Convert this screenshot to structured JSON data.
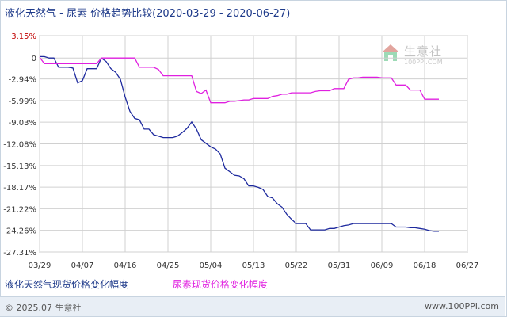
{
  "header": {
    "title": "液化天然气 - 尿素 价格趋势比较",
    "date_range": "(2020-03-29 - 2020-06-27)"
  },
  "watermark": {
    "name": "生意社",
    "url": "100PPI.COM"
  },
  "footer": {
    "copyright": "© 2025.07 生意社",
    "site": "www.100PPI.com"
  },
  "colors": {
    "lng": "#1e2a9e",
    "urea": "#e020e0",
    "grid": "#d0d0d0"
  },
  "chart_data": {
    "type": "line",
    "title": "液化天然气 - 尿素 价格趋势比较",
    "xlabel": "",
    "ylabel": "",
    "grid": true,
    "legend_position": "bottom-left",
    "ylim": [
      -27.31,
      3.15
    ],
    "yticks": [
      "3.15%",
      "0",
      "-2.94%",
      "-5.99%",
      "-9.03%",
      "-12.08%",
      "-15.13%",
      "-18.17%",
      "-21.22%",
      "-24.26%",
      "-27.31%"
    ],
    "ytick_values": [
      3.15,
      0,
      -2.94,
      -5.99,
      -9.03,
      -12.08,
      -15.13,
      -18.17,
      -21.22,
      -24.26,
      -27.31
    ],
    "xticks": [
      "03/29",
      "04/07",
      "04/16",
      "04/25",
      "05/04",
      "05/13",
      "05/22",
      "05/31",
      "06/09",
      "06/18",
      "06/27"
    ],
    "series": [
      {
        "name": "液化天然气现货价格变化幅度",
        "color": "#1e2a9e",
        "points": [
          [
            0,
            0.2
          ],
          [
            1,
            0.2
          ],
          [
            2,
            0.0
          ],
          [
            3,
            0.0
          ],
          [
            4,
            -1.3
          ],
          [
            5,
            -1.3
          ],
          [
            6,
            -1.3
          ],
          [
            7,
            -1.4
          ],
          [
            8,
            -3.5
          ],
          [
            9,
            -3.2
          ],
          [
            10,
            -1.5
          ],
          [
            11,
            -1.5
          ],
          [
            12,
            -1.5
          ],
          [
            13,
            0.0
          ],
          [
            14,
            -0.5
          ],
          [
            15,
            -1.5
          ],
          [
            16,
            -2.0
          ],
          [
            17,
            -3.0
          ],
          [
            18,
            -5.5
          ],
          [
            19,
            -7.5
          ],
          [
            20,
            -8.5
          ],
          [
            21,
            -8.7
          ],
          [
            22,
            -10.0
          ],
          [
            23,
            -10.0
          ],
          [
            24,
            -10.8
          ],
          [
            25,
            -11.0
          ],
          [
            26,
            -11.2
          ],
          [
            27,
            -11.2
          ],
          [
            28,
            -11.2
          ],
          [
            29,
            -11.0
          ],
          [
            30,
            -10.5
          ],
          [
            31,
            -9.9
          ],
          [
            32,
            -9.0
          ],
          [
            33,
            -10.0
          ],
          [
            34,
            -11.5
          ],
          [
            35,
            -12.0
          ],
          [
            36,
            -12.5
          ],
          [
            37,
            -12.8
          ],
          [
            38,
            -13.5
          ],
          [
            39,
            -15.5
          ],
          [
            40,
            -16.0
          ],
          [
            41,
            -16.5
          ],
          [
            42,
            -16.6
          ],
          [
            43,
            -17.0
          ],
          [
            44,
            -18.0
          ],
          [
            45,
            -18.0
          ],
          [
            46,
            -18.2
          ],
          [
            47,
            -18.5
          ],
          [
            48,
            -19.5
          ],
          [
            49,
            -19.7
          ],
          [
            50,
            -20.5
          ],
          [
            51,
            -21.0
          ],
          [
            52,
            -22.0
          ],
          [
            53,
            -22.7
          ],
          [
            54,
            -23.3
          ],
          [
            55,
            -23.3
          ],
          [
            56,
            -23.3
          ],
          [
            57,
            -24.2
          ],
          [
            58,
            -24.2
          ],
          [
            59,
            -24.2
          ],
          [
            60,
            -24.2
          ],
          [
            61,
            -24.0
          ],
          [
            62,
            -24.0
          ],
          [
            63,
            -23.8
          ],
          [
            64,
            -23.6
          ],
          [
            65,
            -23.5
          ],
          [
            66,
            -23.3
          ],
          [
            67,
            -23.3
          ],
          [
            68,
            -23.3
          ],
          [
            69,
            -23.3
          ],
          [
            70,
            -23.3
          ],
          [
            71,
            -23.3
          ],
          [
            72,
            -23.3
          ],
          [
            73,
            -23.3
          ],
          [
            74,
            -23.3
          ],
          [
            75,
            -23.8
          ],
          [
            76,
            -23.8
          ],
          [
            77,
            -23.8
          ],
          [
            78,
            -23.9
          ],
          [
            79,
            -23.9
          ],
          [
            80,
            -24.0
          ],
          [
            81,
            -24.1
          ],
          [
            82,
            -24.3
          ],
          [
            83,
            -24.4
          ],
          [
            84,
            -24.4
          ]
        ]
      },
      {
        "name": "尿素现货价格变化幅度",
        "color": "#e020e0",
        "points": [
          [
            0,
            0.1
          ],
          [
            1,
            -0.8
          ],
          [
            2,
            -0.8
          ],
          [
            3,
            -0.8
          ],
          [
            4,
            -0.8
          ],
          [
            5,
            -0.8
          ],
          [
            6,
            -0.8
          ],
          [
            7,
            -0.8
          ],
          [
            8,
            -0.8
          ],
          [
            9,
            -0.8
          ],
          [
            10,
            -0.8
          ],
          [
            11,
            -0.8
          ],
          [
            12,
            -0.8
          ],
          [
            13,
            0.0
          ],
          [
            14,
            0.0
          ],
          [
            15,
            0.0
          ],
          [
            16,
            0.0
          ],
          [
            17,
            0.0
          ],
          [
            18,
            0.0
          ],
          [
            19,
            0.0
          ],
          [
            20,
            0.0
          ],
          [
            21,
            -1.3
          ],
          [
            22,
            -1.3
          ],
          [
            23,
            -1.3
          ],
          [
            24,
            -1.3
          ],
          [
            25,
            -1.6
          ],
          [
            26,
            -2.5
          ],
          [
            27,
            -2.5
          ],
          [
            28,
            -2.5
          ],
          [
            29,
            -2.5
          ],
          [
            30,
            -2.5
          ],
          [
            31,
            -2.5
          ],
          [
            32,
            -2.5
          ],
          [
            33,
            -4.7
          ],
          [
            34,
            -5.0
          ],
          [
            35,
            -4.5
          ],
          [
            36,
            -6.3
          ],
          [
            37,
            -6.3
          ],
          [
            38,
            -6.3
          ],
          [
            39,
            -6.3
          ],
          [
            40,
            -6.1
          ],
          [
            41,
            -6.1
          ],
          [
            42,
            -6.0
          ],
          [
            43,
            -5.9
          ],
          [
            44,
            -5.9
          ],
          [
            45,
            -5.7
          ],
          [
            46,
            -5.7
          ],
          [
            47,
            -5.7
          ],
          [
            48,
            -5.7
          ],
          [
            49,
            -5.4
          ],
          [
            50,
            -5.3
          ],
          [
            51,
            -5.1
          ],
          [
            52,
            -5.1
          ],
          [
            53,
            -4.9
          ],
          [
            54,
            -4.9
          ],
          [
            55,
            -4.9
          ],
          [
            56,
            -4.9
          ],
          [
            57,
            -4.9
          ],
          [
            58,
            -4.7
          ],
          [
            59,
            -4.6
          ],
          [
            60,
            -4.6
          ],
          [
            61,
            -4.6
          ],
          [
            62,
            -4.3
          ],
          [
            63,
            -4.3
          ],
          [
            64,
            -4.3
          ],
          [
            65,
            -3.0
          ],
          [
            66,
            -2.8
          ],
          [
            67,
            -2.8
          ],
          [
            68,
            -2.7
          ],
          [
            69,
            -2.7
          ],
          [
            70,
            -2.7
          ],
          [
            71,
            -2.7
          ],
          [
            72,
            -2.8
          ],
          [
            73,
            -2.8
          ],
          [
            74,
            -2.8
          ],
          [
            75,
            -3.8
          ],
          [
            76,
            -3.8
          ],
          [
            77,
            -3.8
          ],
          [
            78,
            -4.5
          ],
          [
            79,
            -4.5
          ],
          [
            80,
            -4.5
          ],
          [
            81,
            -5.8
          ],
          [
            82,
            -5.8
          ],
          [
            83,
            -5.8
          ],
          [
            84,
            -5.8
          ]
        ]
      }
    ]
  }
}
